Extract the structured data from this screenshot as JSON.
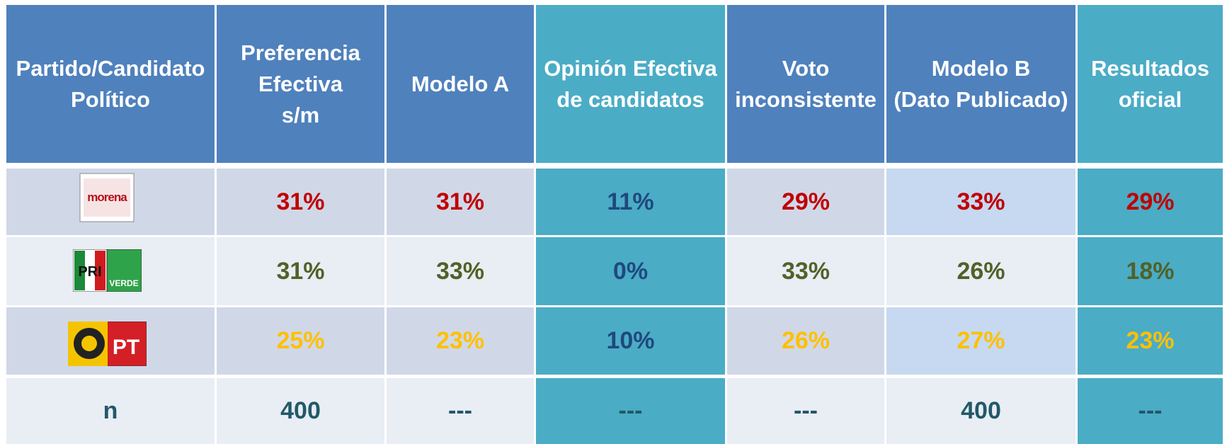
{
  "table": {
    "header": [
      "Partido/Candidato\nPolítico",
      "Preferencia\nEfectiva\ns/m",
      "Modelo A",
      "Opinión Efectiva\nde candidatos",
      "Voto\ninconsistente",
      "Modelo B\n(Dato Publicado)",
      "Resultados\noficial"
    ],
    "rows": [
      {
        "logo": [
          "morena"
        ],
        "cells": [
          "31%",
          "31%",
          "11%",
          "29%",
          "33%",
          "29%"
        ]
      },
      {
        "logo": [
          "PRI",
          "VERDE"
        ],
        "cells": [
          "31%",
          "33%",
          "0%",
          "33%",
          "26%",
          "18%"
        ]
      },
      {
        "logo": [
          "PT"
        ],
        "cells": [
          "25%",
          "23%",
          "10%",
          "26%",
          "27%",
          "23%"
        ]
      },
      {
        "label": "n",
        "cells": [
          "400",
          "---",
          "---",
          "---",
          "400",
          "---"
        ]
      }
    ]
  }
}
